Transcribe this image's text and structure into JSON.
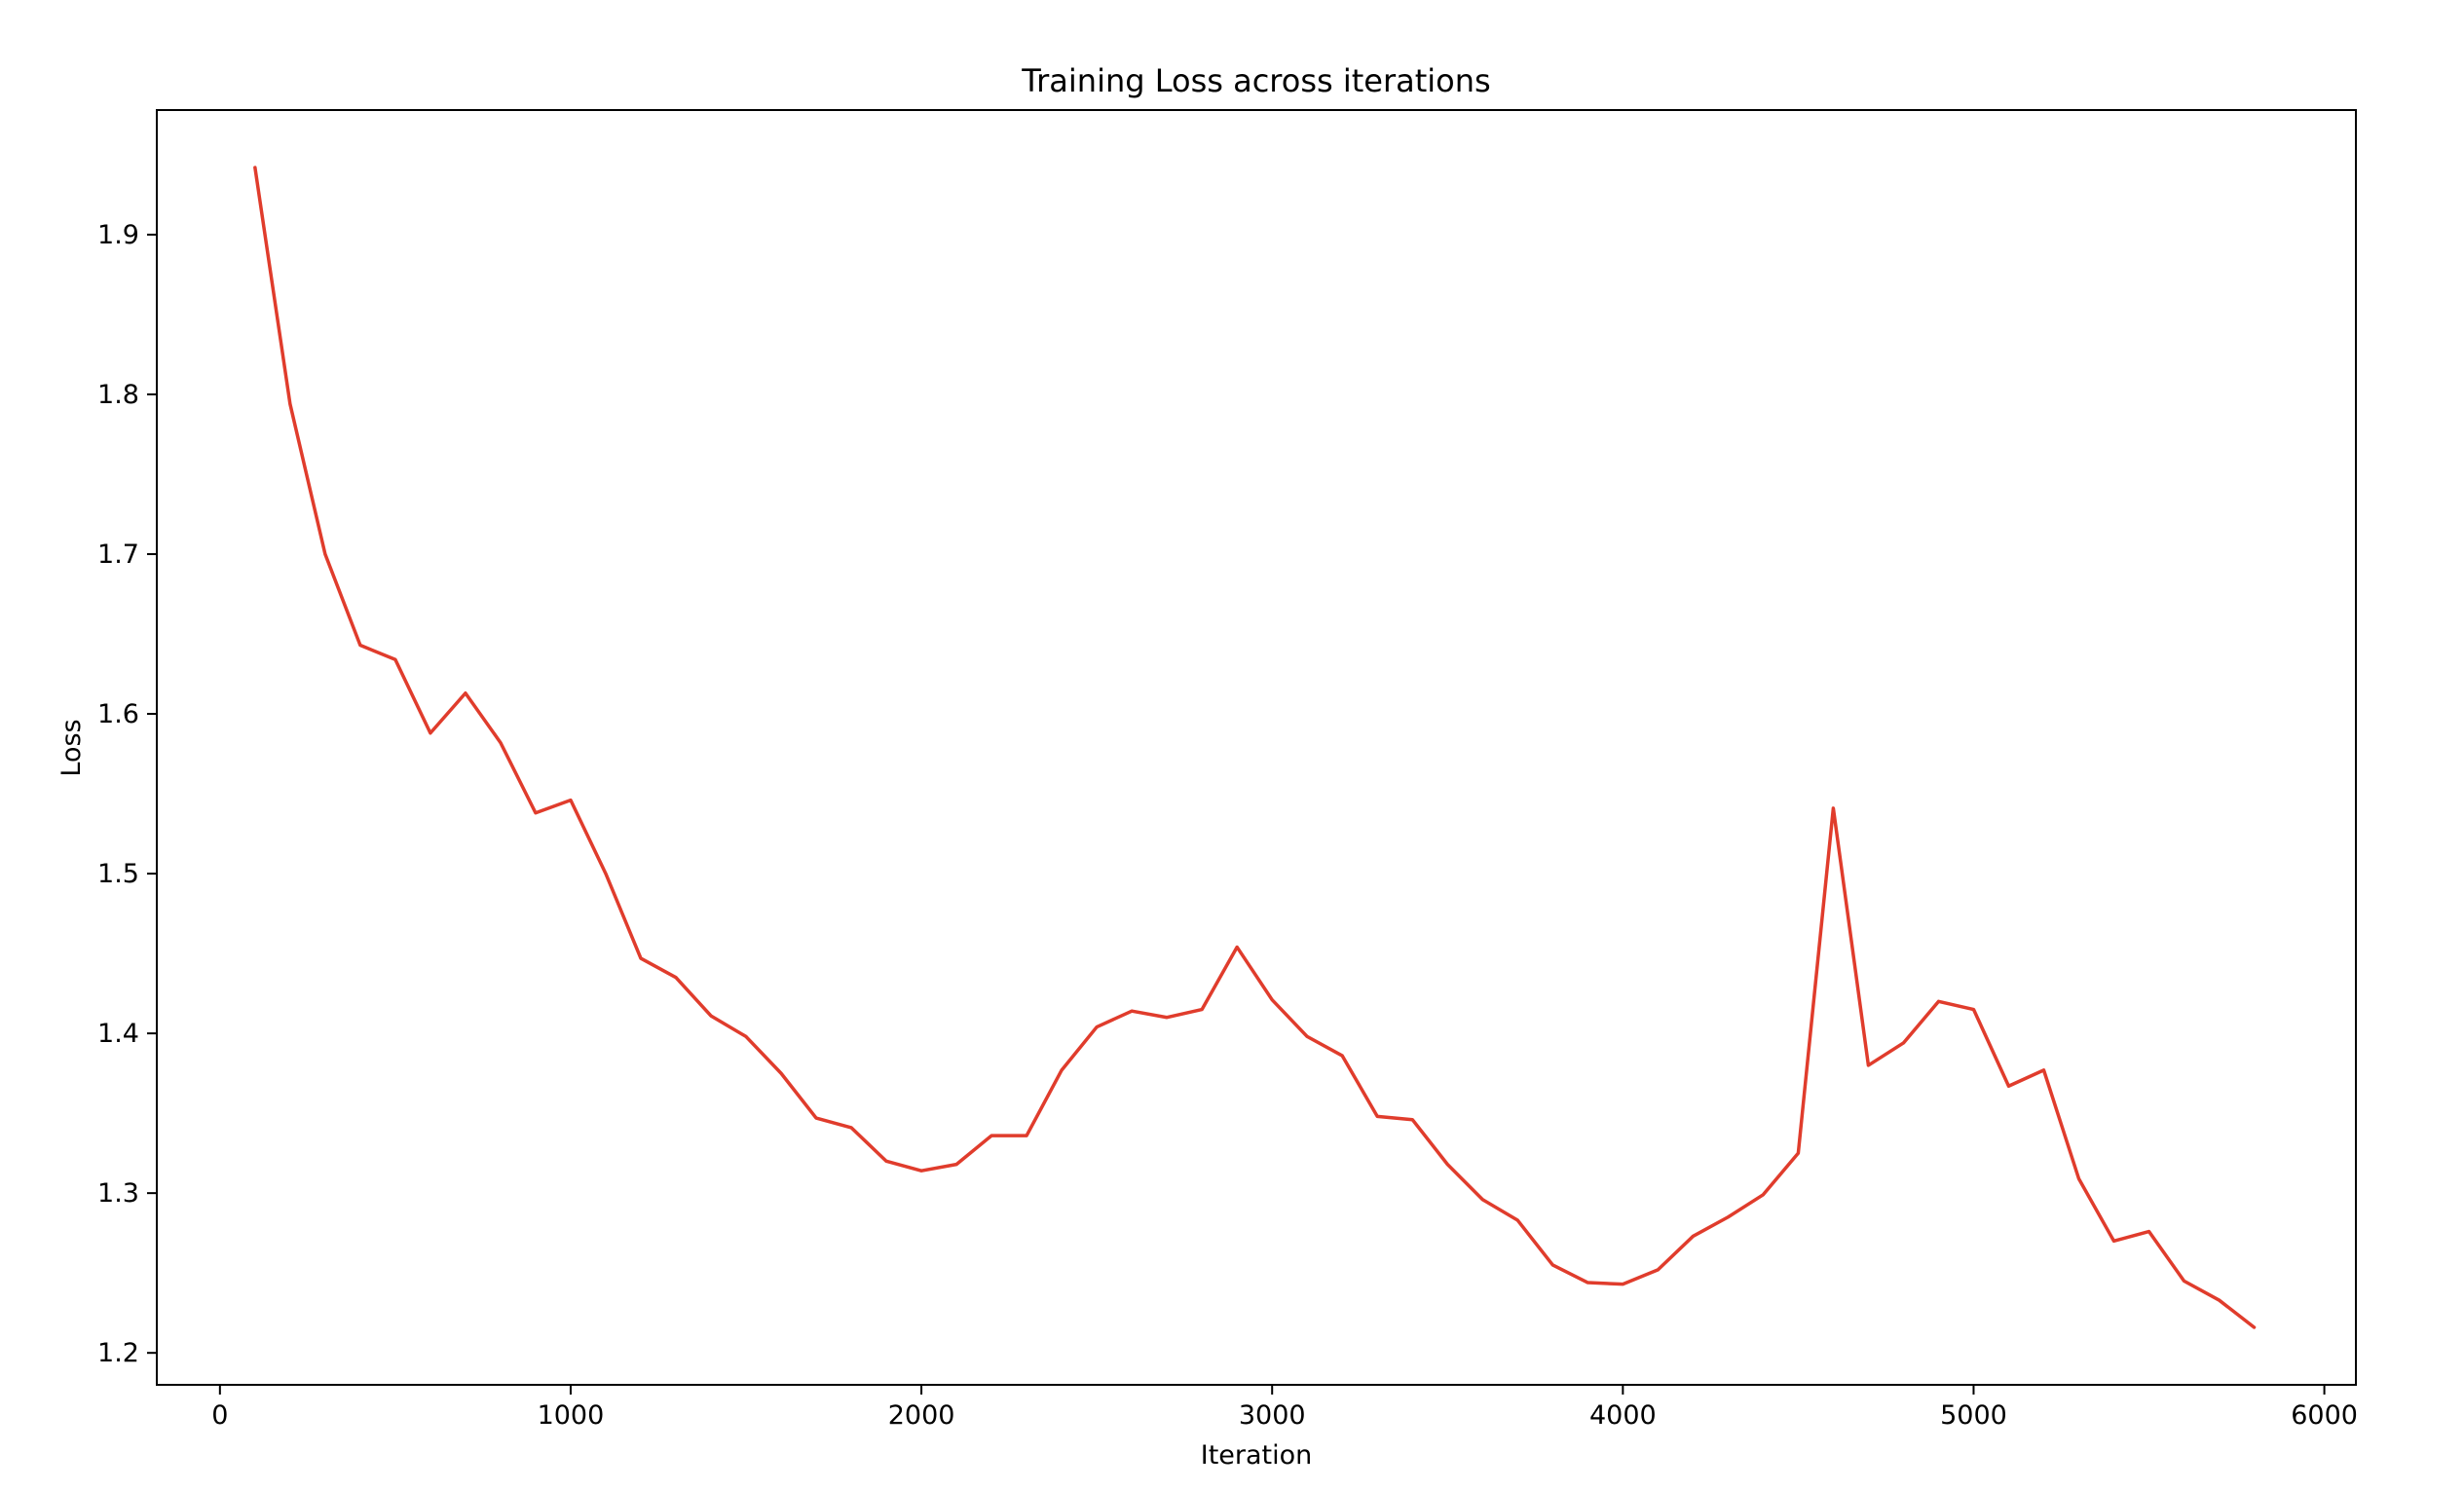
{
  "chart_data": {
    "type": "line",
    "title": "Training Loss across iterations",
    "xlabel": "Iteration",
    "ylabel": "Loss",
    "xlim": [
      -180,
      6090
    ],
    "ylim": [
      1.18,
      1.978
    ],
    "xticks": [
      0,
      1000,
      2000,
      3000,
      4000,
      5000,
      6000
    ],
    "yticks": [
      1.2,
      1.3,
      1.4,
      1.5,
      1.6,
      1.7,
      1.8,
      1.9
    ],
    "xtick_labels": [
      "0",
      "1000",
      "2000",
      "3000",
      "4000",
      "5000",
      "6000"
    ],
    "ytick_labels": [
      "1.2",
      "1.3",
      "1.4",
      "1.5",
      "1.6",
      "1.7",
      "1.8",
      "1.9"
    ],
    "grid": false,
    "legend": "none",
    "series": [
      {
        "color": "#e03c2c",
        "x": [
          100,
          200,
          300,
          400,
          500,
          600,
          700,
          800,
          900,
          1000,
          1100,
          1200,
          1300,
          1400,
          1500,
          1600,
          1700,
          1800,
          1900,
          2000,
          2100,
          2200,
          2300,
          2400,
          2500,
          2600,
          2700,
          2800,
          2900,
          3000,
          3100,
          3200,
          3300,
          3400,
          3500,
          3600,
          3700,
          3800,
          3900,
          4000,
          4100,
          4200,
          4300,
          4400,
          4500,
          4600,
          4700,
          4800,
          4900,
          5000,
          5100,
          5200,
          5300,
          5400,
          5500,
          5600,
          5700,
          5800
        ],
        "values": [
          1.942,
          1.794,
          1.7,
          1.643,
          1.634,
          1.588,
          1.613,
          1.582,
          1.538,
          1.546,
          1.5,
          1.447,
          1.435,
          1.411,
          1.398,
          1.375,
          1.347,
          1.341,
          1.32,
          1.314,
          1.318,
          1.336,
          1.336,
          1.377,
          1.404,
          1.414,
          1.41,
          1.415,
          1.454,
          1.421,
          1.398,
          1.386,
          1.348,
          1.346,
          1.318,
          1.296,
          1.283,
          1.255,
          1.244,
          1.243,
          1.252,
          1.273,
          1.285,
          1.299,
          1.325,
          1.541,
          1.38,
          1.394,
          1.42,
          1.415,
          1.367,
          1.377,
          1.309,
          1.27,
          1.276,
          1.245,
          1.233,
          1.216
        ]
      }
    ]
  }
}
